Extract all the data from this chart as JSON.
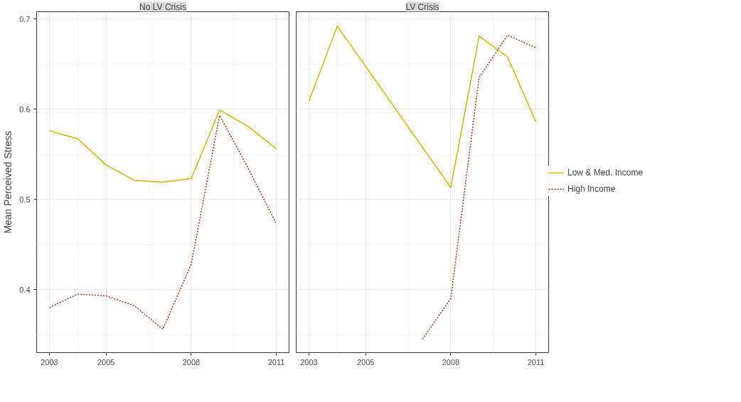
{
  "chart_data": [
    {
      "type": "line",
      "title": "No LV Crisis",
      "ylabel": "Mean Perceived Stress",
      "xlim": [
        2002.55,
        2011.45
      ],
      "xticks": [
        2003,
        2005,
        2008,
        2011
      ],
      "ylim": [
        0.33,
        0.708
      ],
      "yticks": [
        0.4,
        0.5,
        0.6,
        0.7
      ],
      "grid": true,
      "legend": false,
      "series": [
        {
          "color": "#d1b000",
          "line_style": "solid",
          "x": [
            2003,
            2004,
            2005,
            2006,
            2007,
            2008,
            2009,
            2010,
            2011
          ],
          "values": [
            0.576,
            0.567,
            0.538,
            0.521,
            0.519,
            0.523,
            0.599,
            0.581,
            0.556
          ]
        },
        {
          "color": "#a3290c",
          "line_style": "dotted",
          "x": [
            2003,
            2004,
            2005,
            2006,
            2007,
            2008,
            2009,
            2010,
            2011
          ],
          "values": [
            0.38,
            0.395,
            0.393,
            0.382,
            0.356,
            0.428,
            0.593,
            0.535,
            0.473
          ]
        }
      ]
    },
    {
      "type": "line",
      "title": "LV Crisis",
      "xlim": [
        2002.55,
        2011.45
      ],
      "xticks": [
        2003,
        2005,
        2008,
        2011
      ],
      "ylim": [
        0.33,
        0.708
      ],
      "yticks": [
        0.4,
        0.5,
        0.6,
        0.7
      ],
      "grid": true,
      "legend": "right",
      "tick_labels": "x",
      "series": [
        {
          "name": "Low & Med. Income",
          "color": "#d1b000",
          "line_style": "solid",
          "x": [
            2003,
            2004,
            2008,
            2009,
            2010,
            2011
          ],
          "values": [
            0.609,
            0.692,
            0.513,
            0.681,
            0.658,
            0.586
          ]
        },
        {
          "name": "High Income",
          "color": "#a3290c",
          "line_style": "dotted",
          "x": [
            2007,
            2008,
            2009,
            2010,
            2011
          ],
          "values": [
            0.345,
            0.39,
            0.635,
            0.682,
            0.668
          ]
        }
      ]
    }
  ]
}
